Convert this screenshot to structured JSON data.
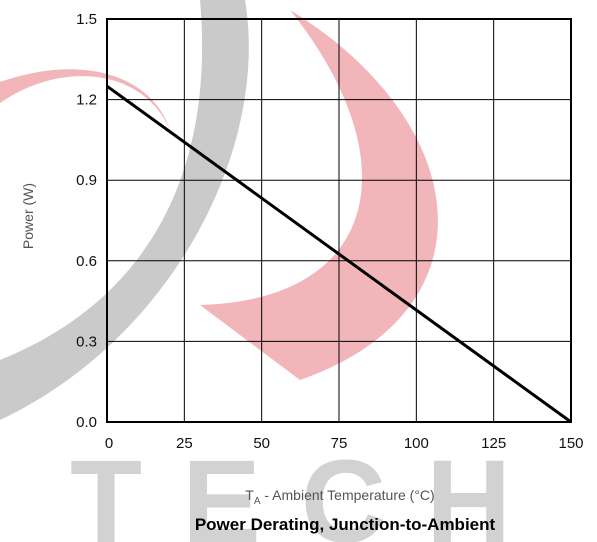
{
  "chart_data": {
    "type": "line",
    "title": "Power Derating, Junction-to-Ambient",
    "xlabel_main": "T",
    "xlabel_sub": "A",
    "xlabel_rest": " - Ambient Temperature (°C)",
    "ylabel": "Power (W)",
    "xlim": [
      0,
      150
    ],
    "ylim": [
      0,
      1.5
    ],
    "x_ticks": [
      "0",
      "25",
      "50",
      "75",
      "100",
      "125",
      "150"
    ],
    "y_ticks": [
      "0.0",
      "0.3",
      "0.6",
      "0.9",
      "1.2",
      "1.5"
    ],
    "grid": true,
    "series": [
      {
        "x": [
          0,
          150
        ],
        "y": [
          1.25,
          0.0
        ]
      }
    ],
    "colors": {
      "line": "#000000",
      "grid": "#000000",
      "watermark_red": "#f0a8ae",
      "watermark_gray": "#c4c4c4"
    }
  },
  "watermark": {
    "text": "TECH"
  }
}
